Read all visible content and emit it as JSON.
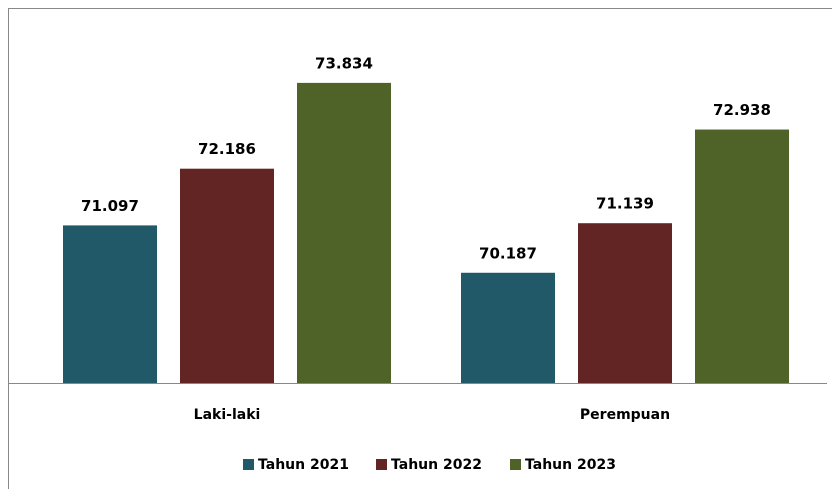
{
  "chart_data": {
    "type": "bar",
    "categories": [
      "Laki-laki",
      "Perempuan"
    ],
    "series": [
      {
        "name": "Tahun 2021",
        "color": "#215968",
        "values": [
          71.097,
          70.187
        ]
      },
      {
        "name": "Tahun 2022",
        "color": "#632523",
        "values": [
          72.186,
          71.139
        ]
      },
      {
        "name": "Tahun 2023",
        "color": "#4f6228",
        "values": [
          73.834,
          72.938
        ]
      }
    ],
    "ylim": [
      68.07,
      74.6
    ],
    "legend": "bottom"
  }
}
